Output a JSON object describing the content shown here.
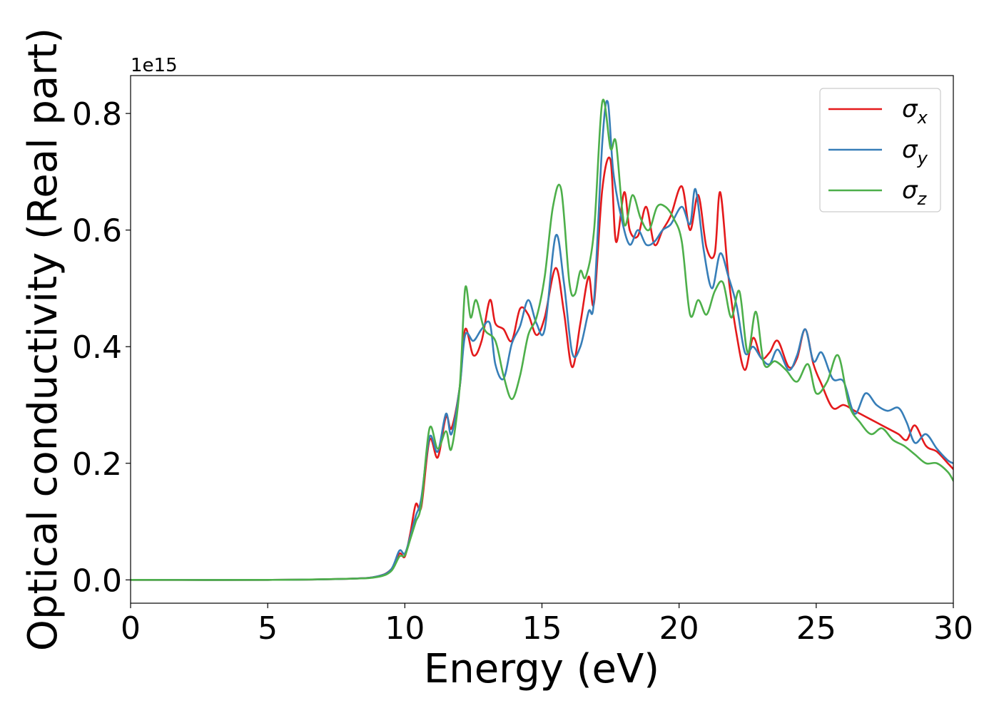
{
  "chart_data": {
    "type": "line",
    "xlabel": "Energy (eV)",
    "ylabel": "Optical conductivity (Real part)",
    "y_offset_label": "1e15",
    "xlim": [
      0,
      30
    ],
    "ylim": [
      -0.04,
      0.865
    ],
    "x_ticks": [
      0,
      5,
      10,
      15,
      20,
      25,
      30
    ],
    "y_ticks": [
      0.0,
      0.2,
      0.4,
      0.6,
      0.8
    ],
    "x_tick_labels": [
      "0",
      "5",
      "10",
      "15",
      "20",
      "25",
      "30"
    ],
    "y_tick_labels": [
      "0.0",
      "0.2",
      "0.4",
      "0.6",
      "0.8"
    ],
    "grid": false,
    "legend_position": "top-right",
    "series": [
      {
        "name": "σx",
        "symbol": "σ",
        "subscript": "x",
        "color": "#e41a1c",
        "x": [
          0,
          5,
          8,
          9,
          9.5,
          9.8,
          10.0,
          10.2,
          10.4,
          10.6,
          10.9,
          11.2,
          11.5,
          11.7,
          12.0,
          12.2,
          12.5,
          12.8,
          13.1,
          13.3,
          13.6,
          13.9,
          14.2,
          14.5,
          14.8,
          15.1,
          15.5,
          15.8,
          16.1,
          16.4,
          16.7,
          16.9,
          17.2,
          17.5,
          17.7,
          18.0,
          18.2,
          18.5,
          18.8,
          19.1,
          19.4,
          19.7,
          20.1,
          20.4,
          20.7,
          21.0,
          21.3,
          21.5,
          21.8,
          22.1,
          22.4,
          22.7,
          23.0,
          23.3,
          23.6,
          24.0,
          24.3,
          24.6,
          24.9,
          25.2,
          25.6,
          26.0,
          26.4,
          26.8,
          27.2,
          27.6,
          28.0,
          28.3,
          28.6,
          29.0,
          29.4,
          29.8,
          30.0
        ],
        "y": [
          0.0,
          0.0,
          0.002,
          0.006,
          0.018,
          0.045,
          0.04,
          0.08,
          0.13,
          0.125,
          0.24,
          0.21,
          0.28,
          0.26,
          0.33,
          0.43,
          0.385,
          0.41,
          0.48,
          0.44,
          0.43,
          0.41,
          0.465,
          0.455,
          0.42,
          0.45,
          0.535,
          0.46,
          0.365,
          0.44,
          0.52,
          0.475,
          0.67,
          0.72,
          0.58,
          0.665,
          0.6,
          0.59,
          0.64,
          0.575,
          0.6,
          0.625,
          0.675,
          0.6,
          0.66,
          0.57,
          0.56,
          0.665,
          0.52,
          0.42,
          0.36,
          0.415,
          0.38,
          0.39,
          0.41,
          0.365,
          0.38,
          0.43,
          0.37,
          0.335,
          0.295,
          0.3,
          0.29,
          0.28,
          0.27,
          0.26,
          0.25,
          0.24,
          0.265,
          0.23,
          0.22,
          0.2,
          0.19
        ]
      },
      {
        "name": "σy",
        "symbol": "σ",
        "subscript": "y",
        "color": "#377eb8",
        "x": [
          0,
          5,
          8,
          9,
          9.5,
          9.8,
          10.0,
          10.2,
          10.4,
          10.6,
          10.9,
          11.2,
          11.5,
          11.7,
          12.0,
          12.2,
          12.5,
          12.8,
          13.1,
          13.3,
          13.6,
          13.9,
          14.2,
          14.5,
          14.8,
          15.1,
          15.5,
          15.8,
          16.1,
          16.4,
          16.7,
          16.9,
          17.2,
          17.4,
          17.6,
          17.9,
          18.2,
          18.5,
          18.8,
          19.1,
          19.4,
          19.7,
          20.1,
          20.4,
          20.6,
          20.9,
          21.2,
          21.5,
          21.8,
          22.1,
          22.4,
          22.7,
          23.0,
          23.3,
          23.6,
          24.0,
          24.3,
          24.6,
          24.9,
          25.2,
          25.6,
          26.0,
          26.4,
          26.8,
          27.2,
          27.6,
          28.0,
          28.3,
          28.6,
          29.0,
          29.4,
          29.8,
          30.0
        ],
        "y": [
          0.0,
          0.0,
          0.002,
          0.006,
          0.018,
          0.05,
          0.045,
          0.075,
          0.11,
          0.14,
          0.245,
          0.22,
          0.285,
          0.25,
          0.33,
          0.42,
          0.41,
          0.43,
          0.44,
          0.37,
          0.345,
          0.405,
          0.435,
          0.48,
          0.44,
          0.43,
          0.59,
          0.51,
          0.39,
          0.4,
          0.46,
          0.48,
          0.75,
          0.82,
          0.7,
          0.62,
          0.575,
          0.6,
          0.575,
          0.58,
          0.6,
          0.61,
          0.64,
          0.61,
          0.67,
          0.565,
          0.5,
          0.56,
          0.52,
          0.47,
          0.39,
          0.4,
          0.38,
          0.37,
          0.395,
          0.36,
          0.385,
          0.43,
          0.375,
          0.39,
          0.345,
          0.34,
          0.285,
          0.32,
          0.3,
          0.29,
          0.295,
          0.27,
          0.235,
          0.25,
          0.225,
          0.205,
          0.2
        ]
      },
      {
        "name": "σz",
        "symbol": "σ",
        "subscript": "z",
        "color": "#4daf4a",
        "x": [
          0,
          5,
          8,
          9,
          9.5,
          9.8,
          10.0,
          10.2,
          10.4,
          10.6,
          10.9,
          11.2,
          11.5,
          11.7,
          12.0,
          12.2,
          12.4,
          12.6,
          12.9,
          13.3,
          13.6,
          13.9,
          14.2,
          14.5,
          14.8,
          15.1,
          15.4,
          15.7,
          16.0,
          16.2,
          16.4,
          16.6,
          16.9,
          17.2,
          17.5,
          17.7,
          18.0,
          18.3,
          18.6,
          18.9,
          19.2,
          19.5,
          19.8,
          20.1,
          20.4,
          20.7,
          21.0,
          21.3,
          21.6,
          21.9,
          22.2,
          22.5,
          22.8,
          23.1,
          23.5,
          23.9,
          24.3,
          24.7,
          25.0,
          25.4,
          25.8,
          26.2,
          26.6,
          27.0,
          27.4,
          27.8,
          28.2,
          28.6,
          29.0,
          29.4,
          29.8,
          30.0
        ],
        "y": [
          0.0,
          0.0,
          0.002,
          0.005,
          0.015,
          0.04,
          0.042,
          0.07,
          0.1,
          0.13,
          0.26,
          0.225,
          0.255,
          0.225,
          0.33,
          0.5,
          0.45,
          0.48,
          0.43,
          0.41,
          0.35,
          0.31,
          0.35,
          0.42,
          0.45,
          0.52,
          0.64,
          0.67,
          0.51,
          0.49,
          0.53,
          0.52,
          0.6,
          0.82,
          0.74,
          0.75,
          0.61,
          0.66,
          0.62,
          0.6,
          0.64,
          0.64,
          0.62,
          0.58,
          0.455,
          0.48,
          0.455,
          0.495,
          0.51,
          0.45,
          0.495,
          0.39,
          0.46,
          0.37,
          0.375,
          0.36,
          0.34,
          0.37,
          0.32,
          0.34,
          0.385,
          0.3,
          0.27,
          0.25,
          0.26,
          0.24,
          0.23,
          0.215,
          0.2,
          0.2,
          0.185,
          0.17
        ]
      }
    ]
  }
}
